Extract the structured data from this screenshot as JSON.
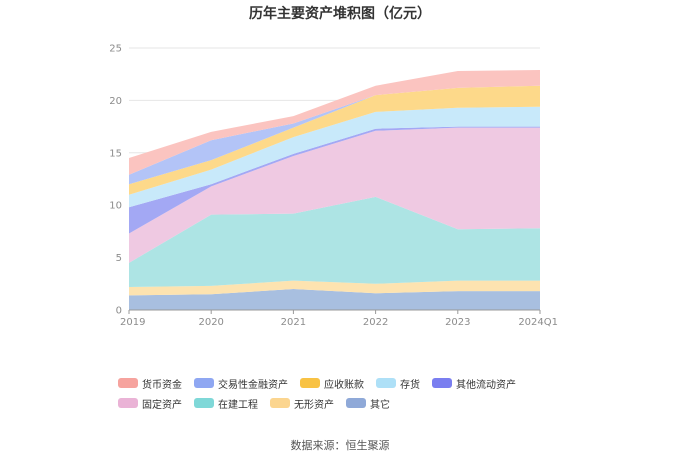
{
  "title": "历年主要资产堆积图（亿元）",
  "source": "数据来源：恒生聚源",
  "chart_data": {
    "type": "area",
    "stacked": true,
    "categories": [
      "2019",
      "2020",
      "2021",
      "2022",
      "2023",
      "2024Q1"
    ],
    "ylim": [
      0,
      25
    ],
    "yticks": [
      0,
      5,
      10,
      15,
      20,
      25
    ],
    "grid": true,
    "legend_position": "bottom",
    "series": [
      {
        "name": "其它",
        "color": "#a8bfe0",
        "values": [
          1.4,
          1.5,
          2.0,
          1.6,
          1.8,
          1.8
        ]
      },
      {
        "name": "无形资产",
        "color": "#fde3b0",
        "values": [
          0.8,
          0.8,
          0.8,
          0.9,
          1.0,
          1.0
        ]
      },
      {
        "name": "在建工程",
        "color": "#ade4e4",
        "values": [
          2.3,
          6.8,
          6.4,
          8.3,
          4.9,
          5.0
        ]
      },
      {
        "name": "固定资产",
        "color": "#efc9e2",
        "values": [
          2.8,
          2.7,
          5.5,
          6.3,
          9.7,
          9.6
        ]
      },
      {
        "name": "其他流动资产",
        "color": "#a3a8f4",
        "values": [
          2.5,
          0.2,
          0.2,
          0.2,
          0.1,
          0.1
        ]
      },
      {
        "name": "存货",
        "color": "#c8e9fa",
        "values": [
          1.2,
          1.4,
          1.6,
          1.6,
          1.8,
          1.9
        ]
      },
      {
        "name": "应收账款",
        "color": "#fdd98a",
        "values": [
          1.0,
          0.9,
          0.9,
          1.6,
          1.9,
          2.0
        ]
      },
      {
        "name": "交易性金融资产",
        "color": "#b3c4f7",
        "values": [
          0.9,
          1.9,
          0.4,
          0.0,
          0.0,
          0.0
        ]
      },
      {
        "name": "货币资金",
        "color": "#fbc4c0",
        "values": [
          1.6,
          0.8,
          0.7,
          0.9,
          1.6,
          1.5
        ]
      }
    ],
    "legend": [
      {
        "name": "货币资金",
        "color": "#f6a39e"
      },
      {
        "name": "交易性金融资产",
        "color": "#8fa7f2"
      },
      {
        "name": "应收账款",
        "color": "#f8c244"
      },
      {
        "name": "存货",
        "color": "#aee0f7"
      },
      {
        "name": "其他流动资产",
        "color": "#7a7ef0"
      },
      {
        "name": "固定资产",
        "color": "#eab3d6"
      },
      {
        "name": "在建工程",
        "color": "#7fd8d8"
      },
      {
        "name": "无形资产",
        "color": "#fbd58f"
      },
      {
        "name": "其它",
        "color": "#8fa9d8"
      }
    ]
  }
}
